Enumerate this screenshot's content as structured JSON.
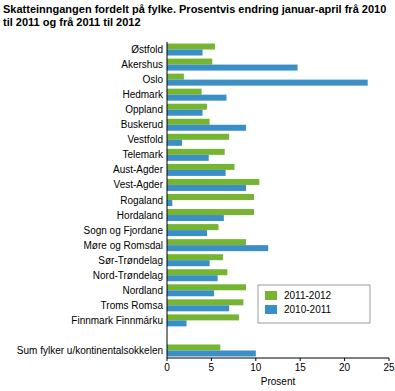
{
  "chart_data": {
    "type": "bar",
    "orientation": "horizontal",
    "title": "Skatteinngangen fordelt på fylke. Prosentvis endring januar-april frå 2010 til 2011 og frå 2011 til 2012",
    "x_label": "Prosent",
    "categories": [
      "Østfold",
      "Akershus",
      "Oslo",
      "Hedmark",
      "Oppland",
      "Buskerud",
      "Vestfold",
      "Telemark",
      "Aust-Agder",
      "Vest-Agder",
      "Rogaland",
      "Hordaland",
      "Sogn og Fjordane",
      "Møre og Romsdal",
      "Sør-Trøndelag",
      "Nord-Trøndelag",
      "Nordland",
      "Troms Romsa",
      "Finnmark Finnmárku",
      null,
      "Sum fylker u/kontinentalsokkelen"
    ],
    "series": [
      {
        "name": "2011-2012",
        "color": "#76b531",
        "values": [
          5.4,
          5.1,
          1.9,
          3.9,
          4.5,
          4.8,
          7.0,
          6.5,
          7.6,
          10.4,
          9.8,
          9.8,
          5.8,
          8.9,
          6.3,
          6.8,
          8.9,
          8.6,
          8.1,
          null,
          6.0
        ]
      },
      {
        "name": "2010-2011",
        "color": "#3a8fc6",
        "values": [
          4.0,
          14.7,
          22.6,
          6.7,
          4.0,
          8.9,
          1.7,
          4.7,
          6.6,
          8.9,
          0.6,
          6.4,
          4.5,
          11.4,
          4.8,
          5.7,
          5.3,
          7.0,
          2.2,
          null,
          10.0
        ]
      }
    ],
    "xlim": [
      0,
      25
    ],
    "xticks": [
      0,
      5,
      10,
      15,
      20,
      25
    ],
    "grid": false,
    "legend": "right"
  }
}
